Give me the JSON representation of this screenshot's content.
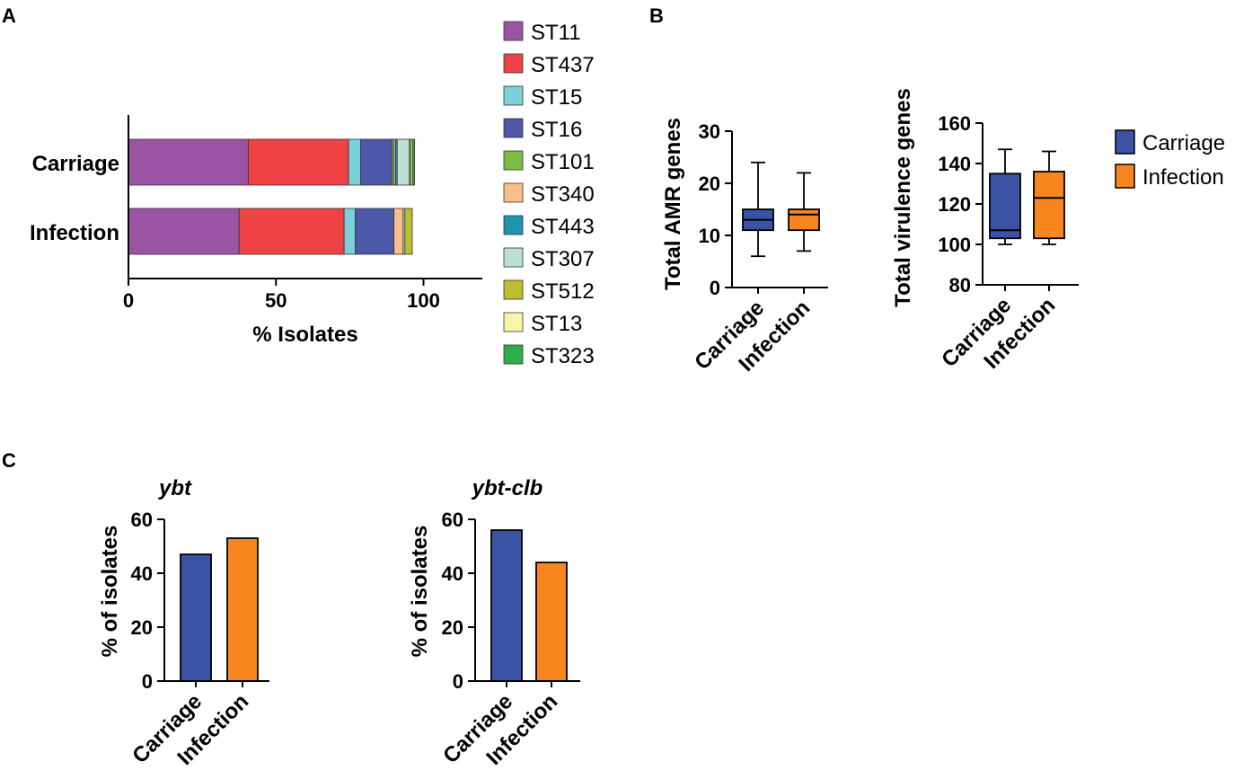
{
  "panels": {
    "a": "A",
    "b": "B",
    "c": "C"
  },
  "colors": {
    "carriage": "#3A53A4",
    "infection": "#F7861E",
    "st": {
      "ST11": "#9B54A3",
      "ST437": "#EE4245",
      "ST15": "#7DCFD9",
      "ST16": "#4E58A8",
      "ST101": "#7DBD46",
      "ST340": "#F8BF8A",
      "ST443": "#1F94AE",
      "ST307": "#B9E0D2",
      "ST512": "#BCBD30",
      "ST13": "#F8F5A8",
      "ST323": "#2DAE4B"
    }
  },
  "chart_data": [
    {
      "id": "st-distribution",
      "type": "bar",
      "orientation": "horizontal",
      "stacked": true,
      "categories": [
        "Carriage",
        "Infection"
      ],
      "series": [
        {
          "name": "ST11",
          "values": [
            40.6,
            37.5
          ]
        },
        {
          "name": "ST437",
          "values": [
            34.0,
            35.6
          ]
        },
        {
          "name": "ST15",
          "values": [
            4.1,
            3.8
          ]
        },
        {
          "name": "ST16",
          "values": [
            10.6,
            13.1
          ]
        },
        {
          "name": "ST101",
          "values": [
            0.6,
            0.0
          ]
        },
        {
          "name": "ST340",
          "values": [
            0.6,
            3.1
          ]
        },
        {
          "name": "ST443",
          "values": [
            0.6,
            0.0
          ]
        },
        {
          "name": "ST307",
          "values": [
            4.1,
            0.6
          ]
        },
        {
          "name": "ST512",
          "values": [
            0.6,
            2.5
          ]
        },
        {
          "name": "ST13",
          "values": [
            0.6,
            0.0
          ]
        },
        {
          "name": "ST323",
          "values": [
            0.6,
            0.0
          ]
        }
      ],
      "xlabel": "% Isolates",
      "xlim": [
        0,
        120
      ],
      "xticks": [
        0,
        50,
        100
      ],
      "legend": "right"
    },
    {
      "id": "amr-genes",
      "type": "box",
      "categories": [
        "Carriage",
        "Infection"
      ],
      "boxes": [
        {
          "min": 6,
          "q1": 11,
          "median": 13,
          "q3": 15,
          "max": 24
        },
        {
          "min": 7,
          "q1": 11,
          "median": 14,
          "q3": 15,
          "max": 22
        }
      ],
      "ylabel": "Total AMR genes",
      "ylim": [
        0,
        30
      ],
      "yticks": [
        0,
        10,
        20,
        30
      ]
    },
    {
      "id": "virulence-genes",
      "type": "box",
      "categories": [
        "Carriage",
        "Infection"
      ],
      "boxes": [
        {
          "min": 100,
          "q1": 103,
          "median": 107,
          "q3": 135,
          "max": 147
        },
        {
          "min": 100,
          "q1": 103,
          "median": 123,
          "q3": 136,
          "max": 146
        }
      ],
      "ylabel": "Total virulence genes",
      "ylim": [
        80,
        160
      ],
      "yticks": [
        80,
        100,
        120,
        140,
        160
      ],
      "legend": [
        "Carriage",
        "Infection"
      ]
    },
    {
      "id": "ybt",
      "type": "bar",
      "title": "ybt",
      "categories": [
        "Carriage",
        "Infection"
      ],
      "values": [
        47,
        53
      ],
      "ylabel": "% of isolates",
      "ylim": [
        0,
        60
      ],
      "yticks": [
        0,
        20,
        40,
        60
      ]
    },
    {
      "id": "ybt-clb",
      "type": "bar",
      "title": "ybt-clb",
      "categories": [
        "Carriage",
        "Infection"
      ],
      "values": [
        56,
        44
      ],
      "ylabel": "% of isolates",
      "ylim": [
        0,
        60
      ],
      "yticks": [
        0,
        20,
        40,
        60
      ]
    }
  ]
}
